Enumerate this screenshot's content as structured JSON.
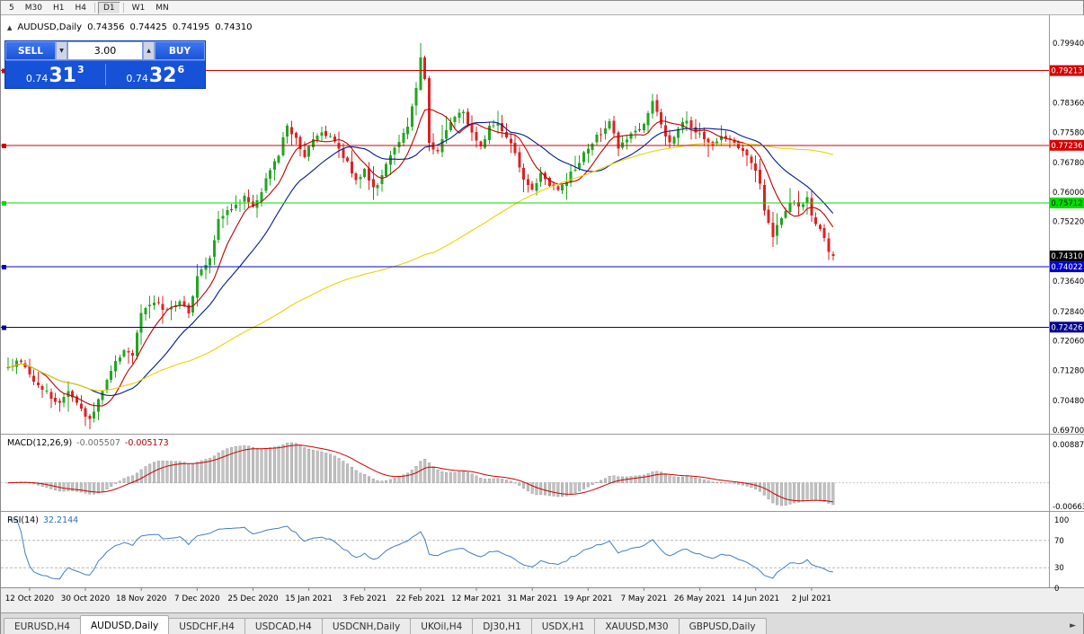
{
  "toolbar": {
    "items": [
      "5",
      "M30",
      "H1",
      "H4",
      "D1",
      "W1",
      "MN"
    ],
    "active": "D1"
  },
  "chart_header": {
    "symbol": "AUDUSD,Daily",
    "open": "0.74356",
    "high": "0.74425",
    "low": "0.74195",
    "close": "0.74310"
  },
  "trade": {
    "sell_label": "SELL",
    "buy_label": "BUY",
    "volume": "3.00",
    "sell_price_prefix": "0.74",
    "sell_price_main": "31",
    "sell_price_sup": "3",
    "buy_price_prefix": "0.74",
    "buy_price_main": "32",
    "buy_price_sup": "6"
  },
  "icons": {
    "chart_arrow": "▲",
    "tab_scroll_right": "►",
    "spin_up": "▲",
    "spin_down": "▼"
  },
  "tabs": {
    "items": [
      "EURUSD,H4",
      "AUDUSD,Daily",
      "USDCHF,H4",
      "USDCAD,H4",
      "USDCNH,Daily",
      "UKOil,H4",
      "DJ30,H1",
      "USDX,H1",
      "XAUUSD,M30",
      "GBPUSD,Daily"
    ],
    "active_index": 1
  },
  "chart_data": {
    "type": "candlestick",
    "symbol": "AUDUSD",
    "timeframe": "Daily",
    "days": 193,
    "seed": 42,
    "last_candle": {
      "open": 0.74356,
      "high": 0.74425,
      "low": 0.74195,
      "close": 0.7431
    },
    "special": {
      "peak_day": 96,
      "peak_high": 0.7994,
      "low_day": 19,
      "low_low": 0.6972
    },
    "anchors": [
      [
        0,
        0.7135
      ],
      [
        3,
        0.7158
      ],
      [
        6,
        0.7105
      ],
      [
        9,
        0.7068
      ],
      [
        12,
        0.7042
      ],
      [
        14,
        0.7076
      ],
      [
        17,
        0.702
      ],
      [
        19,
        0.7002
      ],
      [
        21,
        0.705
      ],
      [
        24,
        0.7128
      ],
      [
        27,
        0.7186
      ],
      [
        29,
        0.7162
      ],
      [
        31,
        0.7282
      ],
      [
        34,
        0.7306
      ],
      [
        37,
        0.729
      ],
      [
        40,
        0.7312
      ],
      [
        42,
        0.7284
      ],
      [
        44,
        0.7376
      ],
      [
        47,
        0.7432
      ],
      [
        49,
        0.7522
      ],
      [
        52,
        0.7556
      ],
      [
        55,
        0.7586
      ],
      [
        57,
        0.7562
      ],
      [
        59,
        0.7606
      ],
      [
        61,
        0.7662
      ],
      [
        63,
        0.7702
      ],
      [
        65,
        0.7772
      ],
      [
        67,
        0.7744
      ],
      [
        69,
        0.7692
      ],
      [
        71,
        0.7736
      ],
      [
        73,
        0.7762
      ],
      [
        75,
        0.7744
      ],
      [
        77,
        0.7712
      ],
      [
        79,
        0.7682
      ],
      [
        81,
        0.7626
      ],
      [
        83,
        0.7656
      ],
      [
        85,
        0.7606
      ],
      [
        87,
        0.7642
      ],
      [
        89,
        0.7702
      ],
      [
        91,
        0.7736
      ],
      [
        93,
        0.7772
      ],
      [
        95,
        0.7872
      ],
      [
        96,
        0.7952
      ],
      [
        97,
        0.7906
      ],
      [
        98,
        0.7732
      ],
      [
        100,
        0.7706
      ],
      [
        102,
        0.7766
      ],
      [
        104,
        0.7792
      ],
      [
        106,
        0.7812
      ],
      [
        108,
        0.7752
      ],
      [
        110,
        0.7722
      ],
      [
        112,
        0.7772
      ],
      [
        114,
        0.7786
      ],
      [
        116,
        0.7746
      ],
      [
        118,
        0.7702
      ],
      [
        120,
        0.7636
      ],
      [
        122,
        0.7608
      ],
      [
        124,
        0.7652
      ],
      [
        126,
        0.7622
      ],
      [
        128,
        0.7606
      ],
      [
        130,
        0.7632
      ],
      [
        132,
        0.7666
      ],
      [
        134,
        0.7702
      ],
      [
        136,
        0.7732
      ],
      [
        138,
        0.7758
      ],
      [
        140,
        0.7792
      ],
      [
        142,
        0.7716
      ],
      [
        144,
        0.7736
      ],
      [
        146,
        0.7762
      ],
      [
        148,
        0.7782
      ],
      [
        150,
        0.7842
      ],
      [
        152,
        0.7772
      ],
      [
        154,
        0.7726
      ],
      [
        156,
        0.7772
      ],
      [
        158,
        0.7792
      ],
      [
        160,
        0.7756
      ],
      [
        162,
        0.7746
      ],
      [
        164,
        0.7722
      ],
      [
        166,
        0.7752
      ],
      [
        168,
        0.7742
      ],
      [
        170,
        0.7716
      ],
      [
        172,
        0.7692
      ],
      [
        174,
        0.7662
      ],
      [
        175,
        0.7622
      ],
      [
        176,
        0.7556
      ],
      [
        177,
        0.7512
      ],
      [
        178,
        0.7484
      ],
      [
        180,
        0.7532
      ],
      [
        182,
        0.7576
      ],
      [
        184,
        0.7556
      ],
      [
        186,
        0.7586
      ],
      [
        187,
        0.7542
      ],
      [
        188,
        0.7522
      ],
      [
        189,
        0.7496
      ],
      [
        190,
        0.7472
      ],
      [
        191,
        0.7446
      ],
      [
        192,
        0.7431
      ]
    ],
    "price_axis": {
      "top_price": 0.7994,
      "bottom_price": 0.697
    },
    "y_ticks": [
      [
        "0.79940",
        0.7994
      ],
      [
        "0.78360",
        0.7836
      ],
      [
        "0.77580",
        0.7758
      ],
      [
        "0.76780",
        0.7678
      ],
      [
        "0.76000",
        0.76
      ],
      [
        "0.75220",
        0.7522
      ],
      [
        "0.73640",
        0.7364
      ],
      [
        "0.72840",
        0.7284
      ],
      [
        "0.72060",
        0.7206
      ],
      [
        "0.71280",
        0.7128
      ],
      [
        "0.70480",
        0.7048
      ],
      [
        "0.69700",
        0.697
      ]
    ],
    "h_lines": [
      {
        "price": 0.79213,
        "label": "0.79213",
        "color": "#d40000",
        "text": "#ffffff"
      },
      {
        "price": 0.77236,
        "label": "0.77236",
        "color": "#d40000",
        "text": "#ffffff"
      },
      {
        "price": 0.75712,
        "label": "0.75712",
        "color": "#00dd00",
        "text": "#003300"
      },
      {
        "price": 0.74022,
        "label": "0.74022",
        "color": "#0000cc",
        "text": "#ffffff"
      },
      {
        "price": 0.72426,
        "label": "0.72426",
        "color": "#000090",
        "text": "#ffffff"
      }
    ],
    "current_price": {
      "label": "0.74310",
      "price": 0.7431,
      "bg": "#000000",
      "text": "#ffffff"
    },
    "moving_averages": [
      {
        "name": "fast-ma",
        "period": 8,
        "color": "#c00000"
      },
      {
        "name": "medium-ma",
        "period": 20,
        "color": "#001a8e"
      },
      {
        "name": "slow-ma",
        "period": 100,
        "color": "#e8d400"
      }
    ],
    "x_labels": [
      [
        5,
        "12 Oct 2020"
      ],
      [
        18,
        "30 Oct 2020"
      ],
      [
        31,
        "18 Nov 2020"
      ],
      [
        44,
        "7 Dec 2020"
      ],
      [
        57,
        "25 Dec 2020"
      ],
      [
        70,
        "15 Jan 2021"
      ],
      [
        83,
        "3 Feb 2021"
      ],
      [
        96,
        "22 Feb 2021"
      ],
      [
        109,
        "12 Mar 2021"
      ],
      [
        122,
        "31 Mar 2021"
      ],
      [
        135,
        "19 Apr 2021"
      ],
      [
        148,
        "7 May 2021"
      ],
      [
        161,
        "26 May 2021"
      ],
      [
        174,
        "14 Jun 2021"
      ],
      [
        187,
        "2 Jul 2021"
      ]
    ],
    "macd": {
      "label": "MACD(12,26,9)",
      "value_main": "-0.005507",
      "value_signal": "-0.005173",
      "axis_max": "0.008871",
      "axis_min": "-0.006632",
      "fast": 12,
      "slow": 26,
      "signal": 9,
      "bar_color": "#c2c2c2",
      "line_color": "#cc0000"
    },
    "rsi": {
      "label": "RSI(14)",
      "value": "32.2144",
      "period": 14,
      "axis": [
        "100",
        "70",
        "30",
        "0"
      ],
      "levels": [
        70,
        30
      ],
      "line_color": "#3f7fbf"
    },
    "colors": {
      "up": "#22a522",
      "down": "#dd2222",
      "bg": "#ffffff"
    }
  }
}
